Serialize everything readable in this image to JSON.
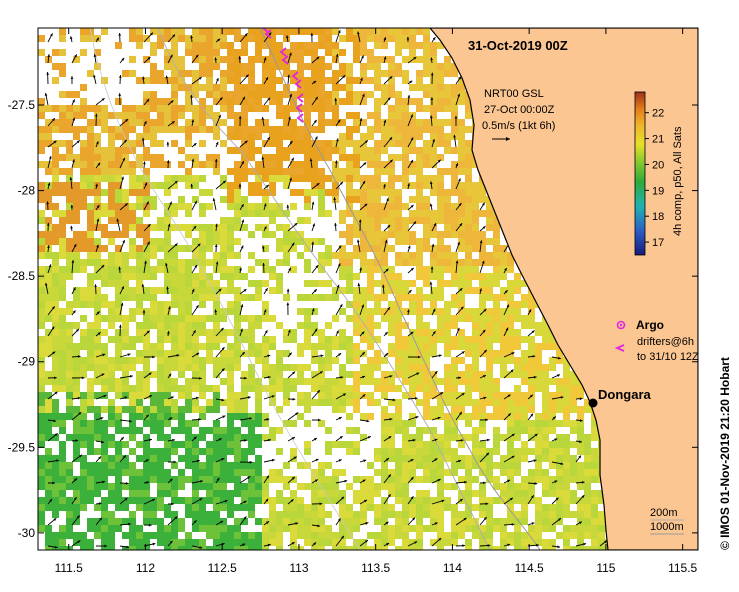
{
  "title": "31-Oct-2019 00Z",
  "product_line1": "NRT00 GSL",
  "product_line2": "27-Oct 00:00Z",
  "product_line3": "0.5m/s (1kt 6h)",
  "colorbar": {
    "label": "4h comp, p50, All Sats",
    "ticks": [
      "17",
      "18",
      "19",
      "20",
      "21",
      "22"
    ],
    "min": 16.5,
    "max": 22.8
  },
  "legend": {
    "argo_label": "Argo",
    "drifters_label1": "drifters@6h",
    "drifters_label2": "to 31/10 12Z"
  },
  "place": {
    "name": "Dongara",
    "lon": 114.93,
    "lat": -29.25
  },
  "bathymetry": {
    "label1": "200m",
    "label2": "1000m"
  },
  "credit": "© IMOS 01-Nov-2019 21:20 Hobart",
  "axes": {
    "lon_range": [
      111.3,
      115.6
    ],
    "lat_range": [
      -30.1,
      -27.05
    ],
    "x_ticks": [
      "111.5",
      "112",
      "112.5",
      "113",
      "113.5",
      "114",
      "114.5",
      "115",
      "115.5"
    ],
    "y_ticks": [
      "-27.5",
      "-28",
      "-28.5",
      "-29",
      "-29.5",
      "-30"
    ]
  },
  "colors": {
    "land": "#fbc692",
    "sst_warm": "#e9a21d",
    "sst_mid": "#c8d83a",
    "sst_cool": "#3bb03a",
    "argo": "#e026e0"
  }
}
